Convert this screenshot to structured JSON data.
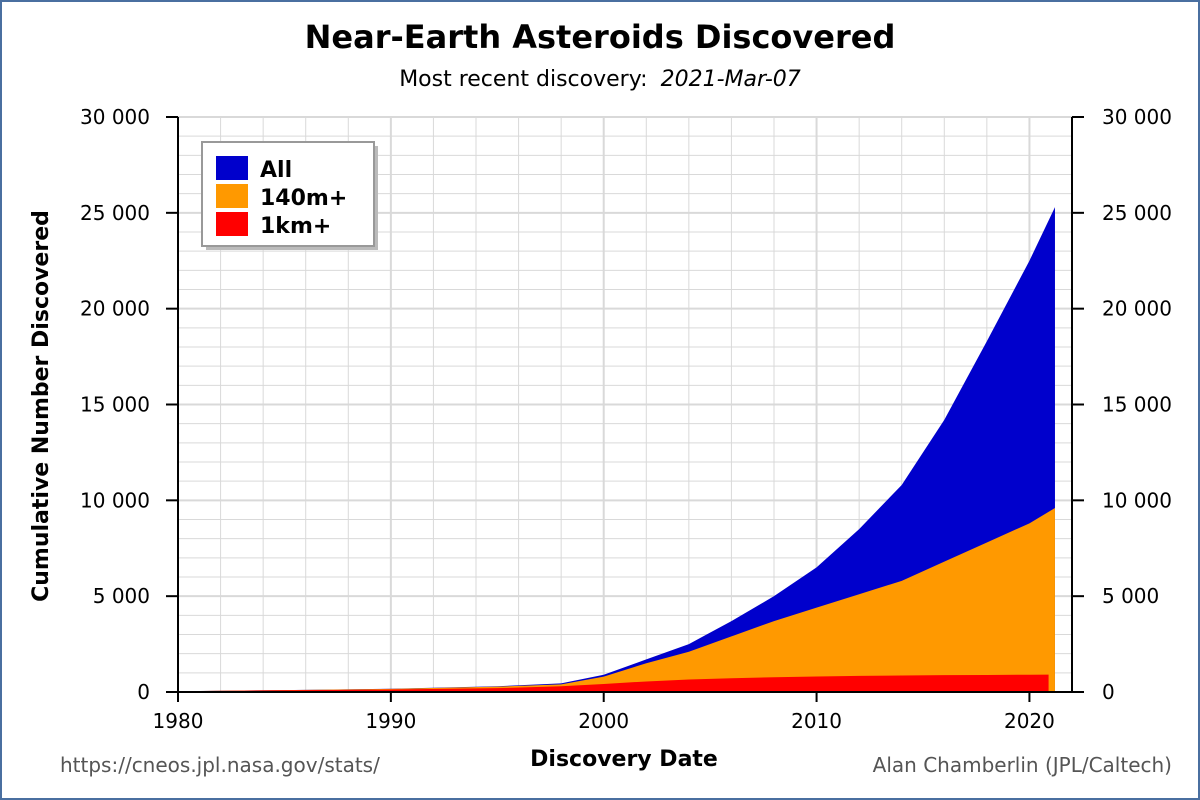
{
  "chart_data": {
    "type": "area",
    "title": "Near-Earth Asteroids Discovered",
    "subtitle_label": "Most recent discovery:",
    "subtitle_date": "2021-Mar-07",
    "xlabel": "Discovery Date",
    "ylabel": "Cumulative Number Discovered",
    "xlim": [
      1980,
      2022
    ],
    "ylim": [
      0,
      30000
    ],
    "x_ticks": [
      1980,
      1990,
      2000,
      2010,
      2020
    ],
    "x_tick_labels": [
      "1980",
      "1990",
      "2000",
      "2010",
      "2020"
    ],
    "y_ticks": [
      0,
      5000,
      10000,
      15000,
      20000,
      25000,
      30000
    ],
    "y_tick_labels": [
      "0",
      "5 000",
      "10 000",
      "15 000",
      "20 000",
      "25 000",
      "30 000"
    ],
    "grid": true,
    "legend_placement": "top-left",
    "series": [
      {
        "name": "All",
        "color": "#0000cc",
        "x": [
          1980,
          1985,
          1990,
          1995,
          1998,
          2000,
          2002,
          2004,
          2006,
          2008,
          2010,
          2012,
          2014,
          2016,
          2018,
          2020,
          2021.2
        ],
        "values": [
          40,
          100,
          170,
          300,
          450,
          900,
          1700,
          2500,
          3700,
          5000,
          6500,
          8500,
          10800,
          14200,
          18300,
          22500,
          25300
        ]
      },
      {
        "name": "140m+",
        "color": "#ff9900",
        "x": [
          1980,
          1985,
          1990,
          1995,
          1998,
          2000,
          2002,
          2004,
          2006,
          2008,
          2010,
          2012,
          2014,
          2016,
          2018,
          2020,
          2021.2
        ],
        "values": [
          40,
          100,
          160,
          280,
          400,
          800,
          1500,
          2100,
          2900,
          3700,
          4400,
          5100,
          5800,
          6800,
          7800,
          8800,
          9600
        ]
      },
      {
        "name": "1km+",
        "color": "#ff0000",
        "x": [
          1980,
          1985,
          1990,
          1995,
          1998,
          2000,
          2002,
          2004,
          2006,
          2008,
          2010,
          2012,
          2014,
          2016,
          2018,
          2020,
          2020.9
        ],
        "values": [
          40,
          90,
          130,
          200,
          300,
          420,
          550,
          650,
          720,
          770,
          810,
          840,
          860,
          880,
          890,
          900,
          905
        ]
      }
    ]
  },
  "footer": {
    "url": "https://cneos.jpl.nasa.gov/stats/",
    "credit": "Alan Chamberlin (JPL/Caltech)"
  },
  "colors": {
    "frame": "#4a6fa0",
    "grid": "#d9d9d9",
    "axis": "#000000"
  }
}
